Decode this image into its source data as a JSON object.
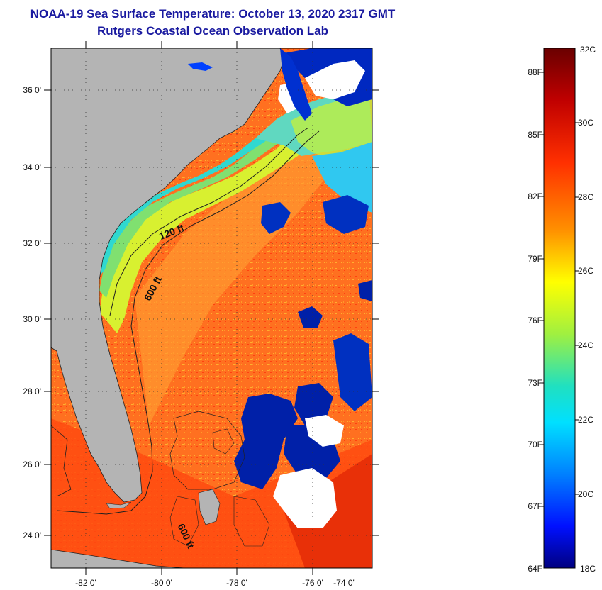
{
  "header": {
    "title": "NOAA-19 Sea Surface Temperature:  October 13, 2020 2317 GMT",
    "subtitle": "Rutgers Coastal Ocean Observation Lab"
  },
  "map": {
    "lat_labels": [
      "36 0'",
      "34 0'",
      "32 0'",
      "30 0'",
      "28 0'",
      "26 0'",
      "24 0'"
    ],
    "lon_labels": [
      "-82 0'",
      "-80 0'",
      "-78 0'",
      "-76 0'",
      "-74 0'"
    ],
    "isobath_labels": [
      "120 ft",
      "600 ft",
      "600 ft"
    ]
  },
  "colorbar": {
    "celsius_labels": [
      "32C",
      "30C",
      "28C",
      "26C",
      "24C",
      "22C",
      "20C",
      "18C"
    ],
    "fahrenheit_labels": [
      "88F",
      "85F",
      "82F",
      "79F",
      "76F",
      "73F",
      "70F",
      "67F",
      "64F"
    ],
    "colors": {
      "top": "#7a0000",
      "red": "#e02000",
      "orange": "#ff8000",
      "yellow": "#ffff00",
      "green": "#7fe040",
      "cyan": "#00ffff",
      "blue": "#0040ff",
      "bottom": "#000080"
    }
  },
  "colors": {
    "land": "#b4b4b4",
    "cloud": "#ffffff",
    "cold_water": "#0020a0",
    "gulf_stream": "#ff6010",
    "shelf_water": "#c8e830",
    "title": "#1a1aa0"
  }
}
